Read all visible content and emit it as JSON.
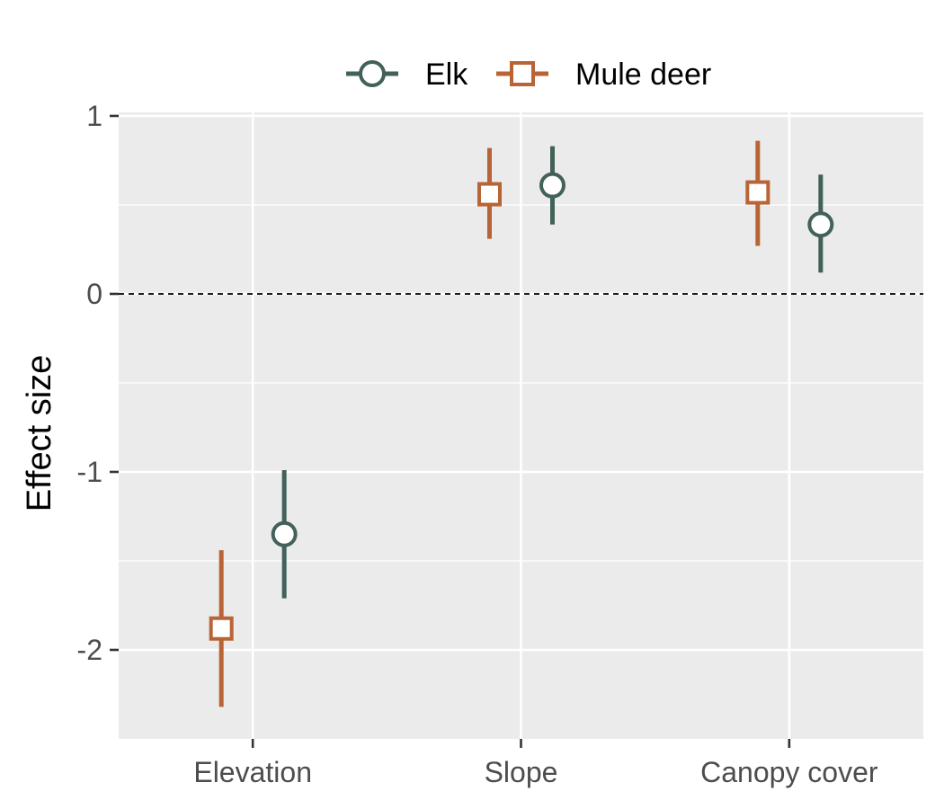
{
  "chart_data": {
    "type": "scatter",
    "subtype": "point-range",
    "title": "",
    "xlabel": "",
    "ylabel": "Effect size",
    "categories": [
      "Elevation",
      "Slope",
      "Canopy cover"
    ],
    "ylim": [
      -2.5,
      1.02
    ],
    "y_ticks": [
      {
        "value": 1,
        "label": "1"
      },
      {
        "value": 0,
        "label": "0"
      },
      {
        "value": -1,
        "label": "-1"
      },
      {
        "value": -2,
        "label": "-2"
      }
    ],
    "reference_line": {
      "value": 0,
      "style": "dashed"
    },
    "grid": true,
    "legend_position": "top",
    "series": [
      {
        "name": "Elk",
        "marker": "circle",
        "color": "#42615a",
        "values": [
          -1.35,
          0.61,
          0.39
        ],
        "lower": [
          -1.71,
          0.39,
          0.12
        ],
        "upper": [
          -0.99,
          0.83,
          0.67
        ]
      },
      {
        "name": "Mule deer",
        "marker": "square",
        "color": "#b86436",
        "values": [
          -1.88,
          0.56,
          0.57
        ],
        "lower": [
          -2.32,
          0.31,
          0.27
        ],
        "upper": [
          -1.44,
          0.82,
          0.86
        ]
      }
    ]
  }
}
